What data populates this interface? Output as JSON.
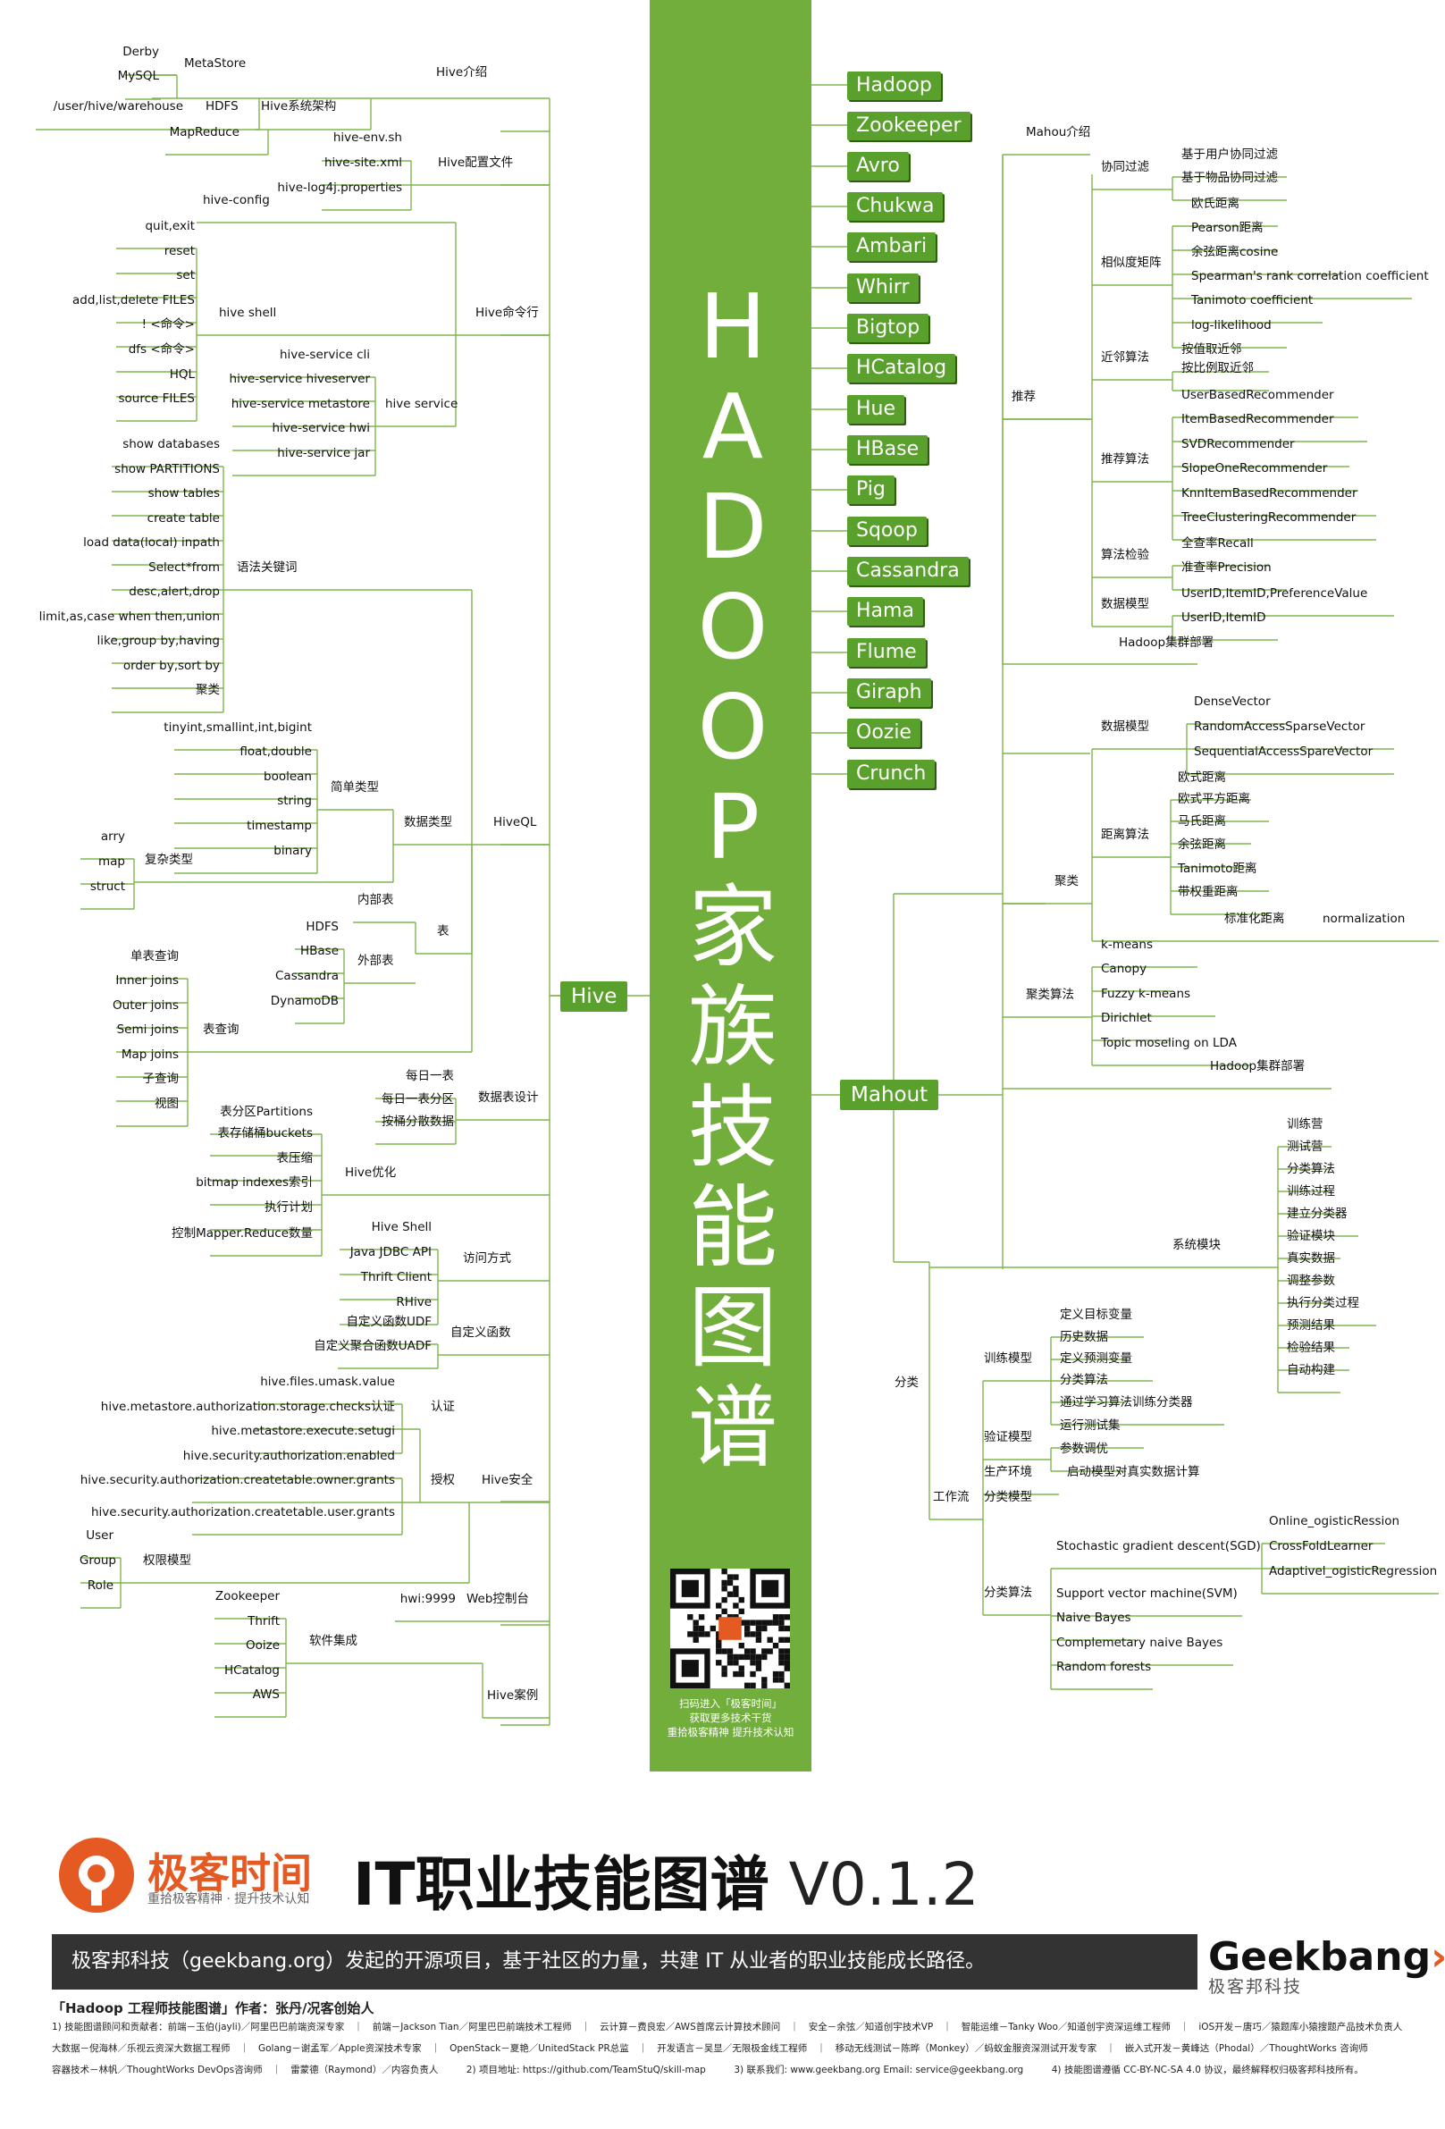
{
  "title_chars": [
    "H",
    "A",
    "D",
    "O",
    "O",
    "P",
    "家",
    "族",
    "技",
    "能",
    "图",
    "谱"
  ],
  "qr_text": [
    "扫码进入「极客时间」",
    "获取更多技术干货",
    "重拾极客精神 提升技术认知"
  ],
  "family": [
    "Hadoop",
    "Zookeeper",
    "Avro",
    "Chukwa",
    "Ambari",
    "Whirr",
    "Bigtop",
    "HCatalog",
    "Hue",
    "HBase",
    "Pig",
    "Sqoop",
    "Cassandra",
    "Hama",
    "Flume",
    "Giraph",
    "Oozie",
    "Crunch"
  ],
  "hubs": {
    "hive": "Hive",
    "mahout": "Mahout"
  },
  "labels": {
    "derby": "Derby",
    "mysql": "MySQL",
    "metastore": "MetaStore",
    "warehouse": "/user/hive/warehouse",
    "hdfs": "HDFS",
    "hive_arch": "Hive系统架构",
    "hive_intro": "Hive介绍",
    "mapreduce": "MapReduce",
    "hive_env": "hive-env.sh",
    "hive_site": "hive-site.xml",
    "hive_log4j": "hive-log4j.properties",
    "hive_conf": "Hive配置文件",
    "hive_config": "hive-config",
    "quit": "quit,exit",
    "reset": "reset",
    "set": "set",
    "add_list": "add,list,delete FILES",
    "bang": "! <命令>",
    "dfs": "dfs <命令>",
    "hql": "HQL",
    "source": "source FILES",
    "hive_shell": "hive shell",
    "hive_cmd": "Hive命令行",
    "svc_cli": "hive-service cli",
    "svc_hiveserver": "hive-service hiveserver",
    "svc_metastore": "hive-service metastore",
    "svc_hwi": "hive-service hwi",
    "svc_jar": "hive-service jar",
    "hive_service": "hive service",
    "show_db": "show databases",
    "show_part": "show PARTITIONS",
    "show_tables": "show tables",
    "create_table": "create table",
    "load_data": "load data(local) inpath",
    "select": "Select*from",
    "desc": "desc,alert,drop",
    "limit": "limit,as,case when then,union",
    "like": "like,group by,having",
    "order": "order by,sort by",
    "cluster": "聚类",
    "syntax_kw": "语法关键词",
    "tinyint": "tinyint,smallint,int,bigint",
    "float": "float,double",
    "boolean": "boolean",
    "string": "string",
    "timestamp": "timestamp",
    "binary": "binary",
    "simple_type": "简单类型",
    "arry": "arry",
    "map": "map",
    "struct": "struct",
    "complex_type": "复杂类型",
    "data_type": "数据类型",
    "hiveql": "HiveQL",
    "inner_table": "内部表",
    "tbl_hdfs": "HDFS",
    "tbl_hbase": "HBase",
    "tbl_cass": "Cassandra",
    "tbl_dyn": "DynamoDB",
    "outer_table": "外部表",
    "table": "表",
    "single_q": "单表查询",
    "inner_joins": "Inner joins",
    "outer_joins": "Outer joins",
    "semi_joins": "Semi joins",
    "map_joins": "Map joins",
    "subq": "子查询",
    "view": "视图",
    "table_q": "表查询",
    "daily": "每日一表",
    "daily_part": "每日一表分区",
    "bucket": "按桶分散数据",
    "tbl_design": "数据表设计",
    "partitions": "表分区Partitions",
    "buckets": "表存储桶buckets",
    "compress": "表压缩",
    "bitmap": "bitmap indexes索引",
    "plan": "执行计划",
    "ctrl_mr": "控制Mapper.Reduce数量",
    "hive_opt": "Hive优化",
    "hive_shell2": "Hive Shell",
    "jdbc": "Java JDBC API",
    "thrift_client": "Thrift Client",
    "rhive": "RHive",
    "access": "访问方式",
    "udf": "自定义函数UDF",
    "udaf": "自定义聚合函数UADF",
    "custom_fn": "自定义函数",
    "umask": "hive.files.umask.value",
    "auth_storage": "hive.metastore.authorization.storage.checks认证",
    "execute": "hive.metastore.execute.setugi",
    "auth_enabled": "hive.security.authorization.enabled",
    "owner_grants": "hive.security.authorization.createtable.owner.grants",
    "user_grants": "hive.security.authorization.createtable.user.grants",
    "auth": "认证",
    "authz": "授权",
    "hive_sec": "Hive安全",
    "user": "User",
    "group": "Group",
    "role": "Role",
    "perm_model": "权限模型",
    "hwi9999": "hwi:9999",
    "web_console": "Web控制台",
    "zookeeper": "Zookeeper",
    "thrift": "Thrift",
    "ooize": "Ooize",
    "hcatalog": "HCatalog",
    "aws": "AWS",
    "sw_integ": "软件集成",
    "hive_case": "Hive案例",
    "mahout_intro": "Mahou介绍",
    "user_cf": "基于用户协同过滤",
    "item_cf": "基于物品协同过滤",
    "cf": "协同过滤",
    "euclid": "欧氏距离",
    "pearson": "Pearson距离",
    "cosine": "余弦距离cosine",
    "spearman": "Spearman's rank correlation coefficient",
    "tanimoto": "Tanimoto coefficient",
    "loglik": "log-likelihood",
    "sim": "相似度矩阵",
    "knn_val": "按值取近邻",
    "knn_ratio": "按比例取近邻",
    "knn": "近邻算法",
    "recommend": "推荐",
    "ubr": "UserBasedRecommender",
    "ibr": "ItemBasedRecommender",
    "svd": "SVDRecommender",
    "slope": "SlopeOneRecommender",
    "knnitem": "KnnItemBasedRecommender",
    "treecl": "TreeClusteringRecommender",
    "rec_algo": "推荐算法",
    "recall": "全查率Recall",
    "precision": "准查率Precision",
    "algo_check": "算法检验",
    "pref_val": "UserID,ItemID,PreferenceValue",
    "uid_iid": "UserID,ItemID",
    "data_model": "数据模型",
    "hadoop_deploy": "Hadoop集群部署",
    "dense": "DenseVector",
    "ras": "RandomAccessSparseVector",
    "seq": "SequentialAccessSpareVector",
    "data_model2": "数据模型",
    "d_euclid": "欧式距离",
    "d_euclid2": "欧式平方距离",
    "manhattan": "马氏距离",
    "d_cosine": "余弦距离",
    "d_tanimoto": "Tanimoto距离",
    "weighted": "带权重距离",
    "dist_algo": "距离算法",
    "std_dist": "标准化距离",
    "normalization": "normalization",
    "kmeans": "k-means",
    "canopy": "Canopy",
    "fuzzy": "Fuzzy k-means",
    "dirichlet": "Dirichlet",
    "lda": "Topic moseling on LDA",
    "cl_algo": "聚类算法",
    "hadoop_deploy2": "Hadoop集群部署",
    "camp": "训练营",
    "test_camp": "测试营",
    "cls_algo": "分类算法",
    "train_proc": "训练过程",
    "build_cls": "建立分类器",
    "verify_mod": "验证模块",
    "real_data": "真实数据",
    "tune": "调整参数",
    "exec_cls": "执行分类过程",
    "predict": "预测结果",
    "check": "检验结果",
    "auto_build": "自动构建",
    "sys_mod": "系统模块",
    "def_target": "定义目标变量",
    "history": "历史数据",
    "def_pred": "定义预测变量",
    "cls_algo2": "分类算法",
    "train_cls": "通过学习算法训练分类器",
    "train_model": "训练模型",
    "run_test": "运行测试集",
    "param_tune": "参数调优",
    "verify_model": "验证模型",
    "start_model": "启动模型对真实数据计算",
    "prod_env": "生产环境",
    "cls_model": "分类模型",
    "workflow": "工作流",
    "classify": "分类",
    "sgd": "Stochastic gradient descent(SGD)",
    "online_lr": "Online_ogisticRession",
    "crossfold": "CrossFoldLearner",
    "adaptive": "Adaptivel_ogisticRegression",
    "svm": "Support vector machine(SVM)",
    "nb": "Naive Bayes",
    "cnb": "Complemetary naive Bayes",
    "rf": "Random forests",
    "cls_algo3": "分类算法"
  },
  "footer": {
    "logo": "极客时间",
    "slogan": "重拾极客精神 · 提升技术认知",
    "title": "IT职业技能图谱",
    "version": "V0.1.2",
    "banner": "极客邦科技（geekbang.org）发起的开源项目，基于社区的力量，共建 IT 从业者的职业技能成长路径。",
    "brand": "Geekbang",
    "brand_sub": "极客邦科技",
    "author": "「Hadoop 工程师技能图谱」作者：张丹/况客创始人",
    "line1": "1) 技能图谱顾问和贡献者：前端－玉伯(jayli)／阿里巴巴前端资深专家　｜　前端－Jackson Tian／阿里巴巴前端技术工程师　｜　云计算－费良宏／AWS首席云计算技术顾问　｜　安全－余弦／知道创宇技术VP　｜　智能运维－Tanky Woo／知道创宇资深运维工程师　｜　iOS开发－唐巧／猿题库小猿搜题产品技术负责人",
    "line2": "大数据－倪海林／乐视云资深大数据工程师　｜　Golang－谢孟军／Apple资深技术专家　｜　OpenStack－夏艳／UnitedStack PR总监　｜　开发语言－吴显／无限极金线工程师　｜　移动无线测试－陈晔（Monkey）／蚂蚁金服资深测试开发专家　｜　嵌入式开发－黄峰达（Phodal）／ThoughtWorks 咨询师",
    "line3": "容器技术－林帆／ThoughtWorks DevOps咨询师　｜　雷蒙德（Raymond）／内容负责人　　　2) 项目地址: https://github.com/TeamStuQ/skill-map　　　3) 联系我们: www.geekbang.org  Email: service@geekbang.org　　　4) 技能图谱遵循 CC-BY-NC-SA 4.0 协议，最终解释权归极客邦科技所有。"
  }
}
